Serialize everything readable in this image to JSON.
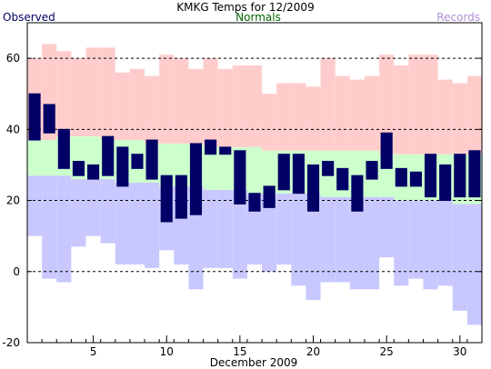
{
  "chart_data": {
    "type": "bar",
    "title": "KMKG Temps for 12/2009",
    "xlabel": "December 2009",
    "ylabel": "",
    "ylim": [
      -20,
      70
    ],
    "xlim": [
      0.5,
      31.5
    ],
    "y_ticks": [
      -20,
      0,
      20,
      40,
      60
    ],
    "x_ticks": [
      5,
      10,
      15,
      20,
      25,
      30
    ],
    "days": [
      1,
      2,
      3,
      4,
      5,
      6,
      7,
      8,
      9,
      10,
      11,
      12,
      13,
      14,
      15,
      16,
      17,
      18,
      19,
      20,
      21,
      22,
      23,
      24,
      25,
      26,
      27,
      28,
      29,
      30,
      31
    ],
    "gridlines": "dashed",
    "legend_placement": "top",
    "series": [
      {
        "name": "Records",
        "color": "#c8c8ff",
        "high_color": "#ffcccc",
        "record_high": [
          60,
          64,
          62,
          60,
          63,
          63,
          56,
          57,
          55,
          61,
          60,
          57,
          60,
          57,
          58,
          58,
          50,
          53,
          53,
          52,
          60,
          55,
          54,
          55,
          61,
          58,
          61,
          61,
          54,
          53,
          55
        ],
        "record_low": [
          10,
          -2,
          -3,
          7,
          10,
          8,
          2,
          2,
          1,
          6,
          2,
          -5,
          1,
          1,
          -2,
          2,
          0,
          2,
          -4,
          -8,
          -3,
          -3,
          -5,
          -5,
          4,
          -4,
          -2,
          -5,
          -4,
          -11,
          -15
        ]
      },
      {
        "name": "Normals",
        "color": "#ccffcc",
        "normal_high": [
          37,
          37,
          38,
          38,
          38,
          37,
          37,
          37,
          36,
          36,
          36,
          36,
          35,
          35,
          35,
          35,
          34,
          34,
          34,
          34,
          34,
          34,
          34,
          34,
          33,
          33,
          33,
          33,
          33,
          33,
          33
        ],
        "normal_low": [
          27,
          27,
          27,
          26,
          26,
          26,
          25,
          25,
          25,
          24,
          24,
          24,
          23,
          23,
          23,
          22,
          22,
          22,
          22,
          22,
          21,
          21,
          21,
          21,
          21,
          20,
          20,
          20,
          20,
          19,
          19
        ]
      },
      {
        "name": "Observed",
        "color": "#000066",
        "high": [
          50,
          47,
          40,
          31,
          30,
          38,
          35,
          33,
          37,
          27,
          27,
          36,
          37,
          35,
          34,
          22,
          24,
          33,
          33,
          30,
          31,
          29,
          27,
          31,
          39,
          29,
          28,
          33,
          30,
          33,
          34
        ],
        "low": [
          37,
          39,
          29,
          27,
          26,
          27,
          24,
          29,
          26,
          14,
          15,
          16,
          33,
          33,
          19,
          17,
          18,
          23,
          22,
          17,
          27,
          23,
          17,
          26,
          29,
          24,
          24,
          21,
          20,
          21,
          21
        ]
      }
    ]
  }
}
